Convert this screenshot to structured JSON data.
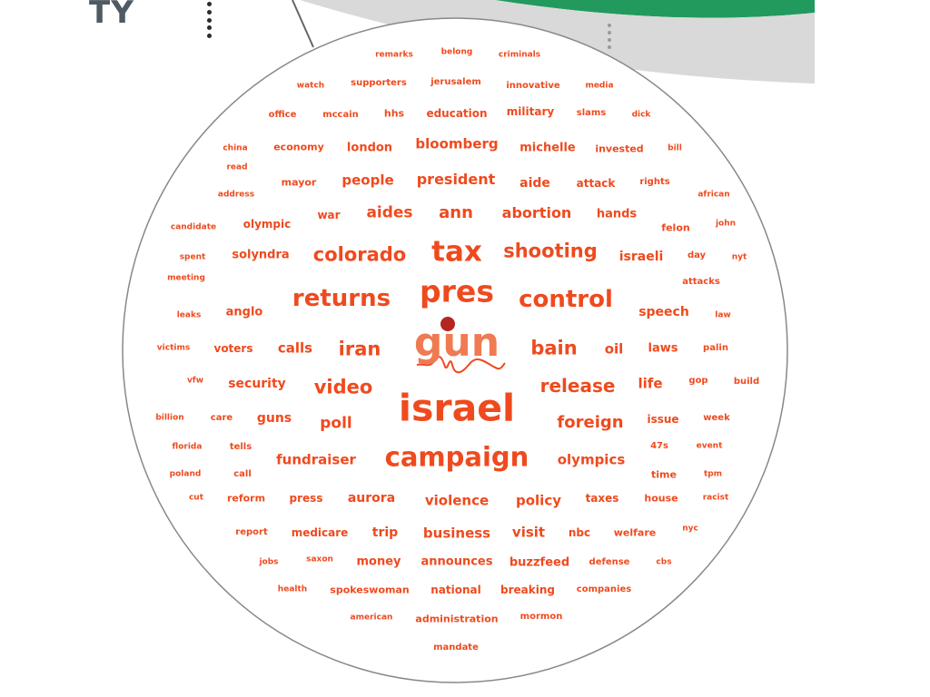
{
  "header": {
    "title": "TY"
  },
  "colors": {
    "word": "#ef4a1e",
    "focus_word": "#f07a52",
    "focus_dot": "#b5261e",
    "band_green": "#229a5e",
    "band_gray": "#d9d9d9",
    "circle_stroke": "#888888"
  },
  "icons": {
    "menu": "vertical-dots-icon",
    "handle": "drag-handle-icon"
  },
  "cloud": {
    "focus": "gun",
    "words": [
      "remarks",
      "belong",
      "criminals",
      "watch",
      "supporters",
      "jerusalem",
      "innovative",
      "media",
      "office",
      "mccain",
      "hhs",
      "education",
      "military",
      "slams",
      "dick",
      "china",
      "economy",
      "london",
      "bloomberg",
      "michelle",
      "invested",
      "bill",
      "read",
      "mayor",
      "people",
      "president",
      "aide",
      "attack",
      "rights",
      "address",
      "african",
      "war",
      "aides",
      "ann",
      "abortion",
      "hands",
      "candidate",
      "olympic",
      "felon",
      "john",
      "spent",
      "solyndra",
      "colorado",
      "tax",
      "shooting",
      "israeli",
      "day",
      "nyt",
      "meeting",
      "attacks",
      "leaks",
      "anglo",
      "returns",
      "pres",
      "control",
      "speech",
      "law",
      "victims",
      "voters",
      "calls",
      "iran",
      "bain",
      "oil",
      "laws",
      "palin",
      "vfw",
      "security",
      "video",
      "release",
      "life",
      "gop",
      "build",
      "billion",
      "care",
      "guns",
      "poll",
      "israel",
      "foreign",
      "issue",
      "week",
      "florida",
      "tells",
      "fundraiser",
      "campaign",
      "olympics",
      "47s",
      "event",
      "poland",
      "call",
      "time",
      "tpm",
      "cut",
      "reform",
      "press",
      "aurora",
      "violence",
      "policy",
      "taxes",
      "house",
      "racist",
      "report",
      "medicare",
      "trip",
      "business",
      "visit",
      "nbc",
      "welfare",
      "nyc",
      "jobs",
      "saxon",
      "money",
      "announces",
      "buzzfeed",
      "defense",
      "cbs",
      "health",
      "spokeswoman",
      "national",
      "breaking",
      "companies",
      "american",
      "administration",
      "mormon",
      "mandate"
    ]
  }
}
